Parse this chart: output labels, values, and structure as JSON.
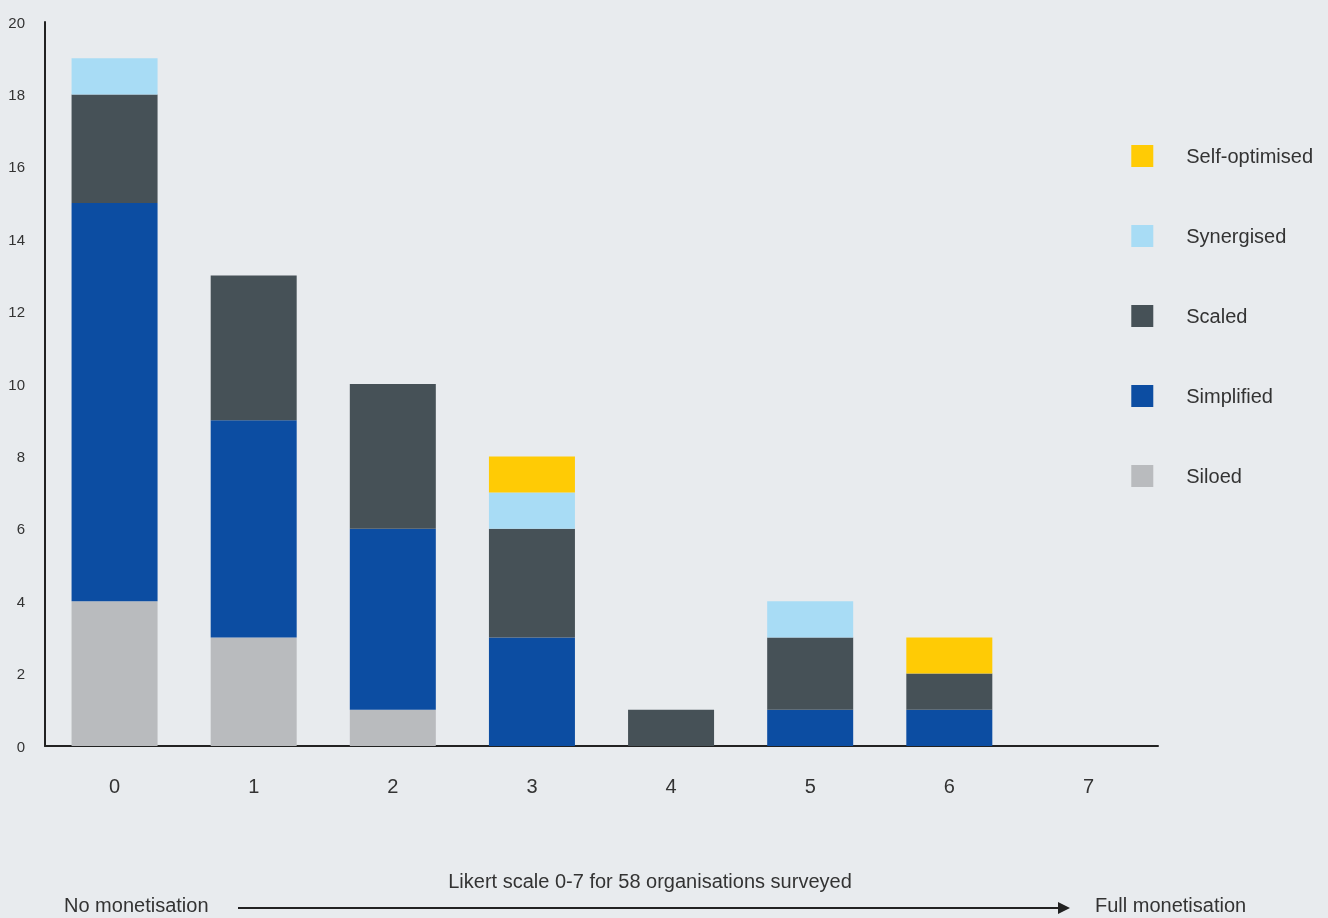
{
  "chart_data": {
    "type": "bar",
    "stacked": true,
    "categories": [
      "0",
      "1",
      "2",
      "3",
      "4",
      "5",
      "6",
      "7"
    ],
    "series": [
      {
        "name": "Siloed",
        "color": "#b9bbbe",
        "values": [
          4,
          3,
          1,
          0,
          0,
          0,
          0,
          null
        ]
      },
      {
        "name": "Simplified",
        "color": "#0c4da2",
        "values": [
          11,
          6,
          5,
          3,
          0,
          1,
          1,
          null
        ]
      },
      {
        "name": "Scaled",
        "color": "#465157",
        "values": [
          3,
          4,
          4,
          3,
          1,
          2,
          1,
          null
        ]
      },
      {
        "name": "Synergised",
        "color": "#a8dcf5",
        "values": [
          1,
          0,
          0,
          1,
          0,
          1,
          0,
          null
        ]
      },
      {
        "name": "Self-optimised",
        "color": "#ffcb05",
        "values": [
          0,
          0,
          0,
          1,
          0,
          0,
          1,
          null
        ]
      }
    ],
    "ylim": [
      0,
      20
    ],
    "yticks": [
      0,
      2,
      4,
      6,
      8,
      10,
      12,
      14,
      16,
      18,
      20
    ],
    "grid": false,
    "legend": "right",
    "annotations": [
      "Likert scale 0-7 for 58 organisations surveyed",
      "No monetisation",
      "Full monetisation"
    ]
  }
}
